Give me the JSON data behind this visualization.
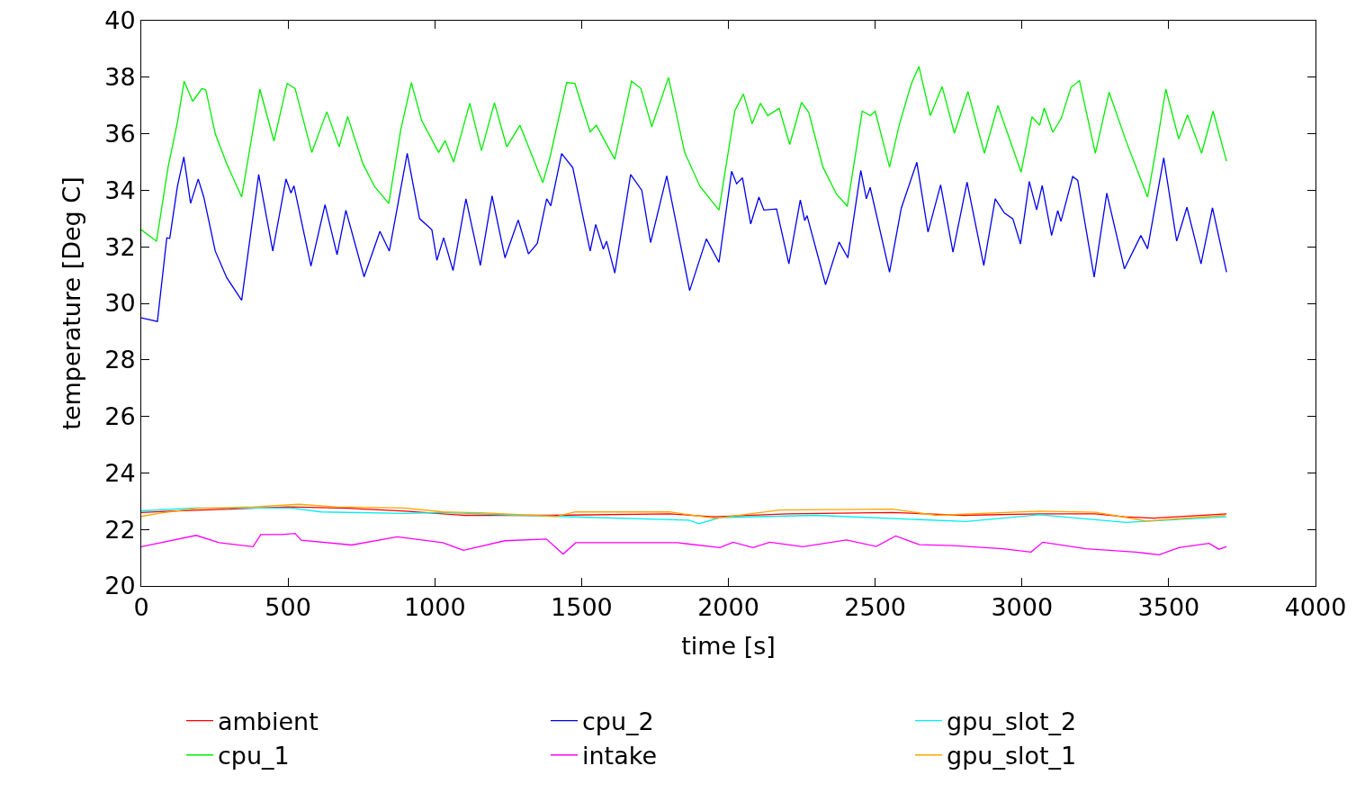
{
  "chart_data": {
    "type": "line",
    "xlabel": "time [s]",
    "ylabel": "temperature [Deg C]",
    "xlim": [
      0,
      4000
    ],
    "xticks": [
      0,
      500,
      1000,
      1500,
      2000,
      2500,
      3000,
      3500,
      4000
    ],
    "ylim": [
      20,
      40
    ],
    "yticks": [
      20,
      22,
      24,
      26,
      28,
      30,
      32,
      34,
      36,
      38,
      40
    ],
    "grid": false,
    "legend": "bottom",
    "marker": "none",
    "line_style": "solid",
    "series": [
      {
        "name": "ambient",
        "color": "#ff0000",
        "x": [
          0,
          100,
          250,
          500,
          700,
          900,
          1100,
          1400,
          1800,
          1950,
          2200,
          2560,
          2800,
          3060,
          3250,
          3350,
          3450,
          3697
        ],
        "values": [
          22.6,
          22.65,
          22.7,
          22.8,
          22.75,
          22.65,
          22.5,
          22.5,
          22.55,
          22.45,
          22.55,
          22.6,
          22.5,
          22.55,
          22.55,
          22.45,
          22.4,
          22.55
        ]
      },
      {
        "name": "cpu_1",
        "color": "#00ee00",
        "x": [
          0,
          52,
          91,
          123,
          146,
          175,
          207,
          220,
          252,
          291,
          342,
          404,
          452,
          497,
          524,
          581,
          632,
          674,
          703,
          755,
          794,
          843,
          884,
          920,
          955,
          1013,
          1035,
          1064,
          1119,
          1159,
          1203,
          1245,
          1290,
          1368,
          1393,
          1449,
          1477,
          1529,
          1550,
          1613,
          1670,
          1702,
          1739,
          1796,
          1851,
          1903,
          1968,
          2022,
          2051,
          2081,
          2109,
          2134,
          2173,
          2209,
          2249,
          2274,
          2322,
          2368,
          2405,
          2456,
          2484,
          2500,
          2549,
          2583,
          2623,
          2649,
          2688,
          2728,
          2770,
          2816,
          2872,
          2918,
          2997,
          3034,
          3060,
          3076,
          3105,
          3134,
          3167,
          3196,
          3250,
          3297,
          3354,
          3428,
          3456,
          3490,
          3534,
          3564,
          3612,
          3651,
          3697
        ],
        "values": [
          32.6,
          32.2,
          34.8,
          36.4,
          37.86,
          37.15,
          37.6,
          37.55,
          36.0,
          34.94,
          33.76,
          37.58,
          35.74,
          37.78,
          37.6,
          35.34,
          36.78,
          35.54,
          36.61,
          34.94,
          34.14,
          33.53,
          36.14,
          37.81,
          36.47,
          35.34,
          35.76,
          35.0,
          37.08,
          35.4,
          37.1,
          35.54,
          36.3,
          34.27,
          35.2,
          37.81,
          37.78,
          36.07,
          36.3,
          35.1,
          37.86,
          37.6,
          36.25,
          37.99,
          35.34,
          34.14,
          33.3,
          36.82,
          37.41,
          36.35,
          37.08,
          36.64,
          36.9,
          35.62,
          37.11,
          36.75,
          34.82,
          33.87,
          33.43,
          36.8,
          36.64,
          36.8,
          34.82,
          36.35,
          37.76,
          38.38,
          36.64,
          37.67,
          36.02,
          37.49,
          35.31,
          37.0,
          34.64,
          36.6,
          36.3,
          36.91,
          36.05,
          36.55,
          37.64,
          37.88,
          35.31,
          37.47,
          35.76,
          33.76,
          35.4,
          37.58,
          35.82,
          36.67,
          35.31,
          36.8,
          35.03
        ]
      },
      {
        "name": "cpu_2",
        "color": "#0000ee",
        "x": [
          0,
          55,
          87,
          97,
          123,
          145,
          168,
          194,
          213,
          252,
          291,
          342,
          400,
          448,
          493,
          510,
          520,
          578,
          626,
          667,
          697,
          759,
          813,
          845,
          906,
          948,
          990,
          1007,
          1030,
          1062,
          1106,
          1155,
          1195,
          1239,
          1284,
          1319,
          1349,
          1381,
          1395,
          1432,
          1470,
          1529,
          1548,
          1574,
          1585,
          1613,
          1667,
          1705,
          1735,
          1790,
          1868,
          1925,
          1968,
          2011,
          2028,
          2048,
          2076,
          2104,
          2121,
          2164,
          2206,
          2245,
          2260,
          2268,
          2331,
          2377,
          2407,
          2451,
          2470,
          2483,
          2549,
          2589,
          2642,
          2680,
          2723,
          2765,
          2813,
          2870,
          2909,
          2940,
          2969,
          2995,
          3025,
          3050,
          3069,
          3101,
          3122,
          3133,
          3173,
          3190,
          3246,
          3289,
          3349,
          3405,
          3428,
          3483,
          3527,
          3562,
          3610,
          3649,
          3697
        ],
        "values": [
          29.49,
          29.36,
          32.32,
          32.3,
          34.13,
          35.18,
          33.54,
          34.4,
          33.76,
          31.85,
          30.91,
          30.11,
          34.56,
          31.85,
          34.4,
          33.9,
          34.16,
          31.32,
          33.49,
          31.72,
          33.29,
          30.94,
          32.55,
          31.85,
          35.31,
          33.0,
          32.6,
          31.52,
          32.32,
          31.16,
          33.7,
          31.34,
          33.8,
          31.61,
          32.95,
          31.75,
          32.12,
          33.7,
          33.45,
          35.3,
          34.8,
          31.85,
          32.79,
          31.92,
          32.2,
          31.07,
          34.56,
          34.0,
          32.15,
          34.51,
          30.45,
          32.28,
          31.45,
          34.67,
          34.23,
          34.44,
          32.81,
          33.76,
          33.3,
          33.34,
          31.4,
          33.66,
          32.93,
          33.1,
          30.66,
          32.17,
          31.61,
          34.7,
          33.7,
          34.1,
          31.1,
          33.37,
          34.99,
          32.52,
          34.19,
          31.81,
          34.29,
          31.34,
          33.7,
          33.2,
          32.99,
          32.1,
          34.31,
          33.31,
          34.17,
          32.4,
          33.28,
          32.9,
          34.49,
          34.35,
          30.93,
          33.9,
          31.22,
          32.4,
          31.93,
          35.15,
          32.2,
          33.4,
          31.4,
          33.38,
          31.1
        ]
      },
      {
        "name": "intake",
        "color": "#ff00ff",
        "x": [
          0,
          187,
          265,
          381,
          407,
          478,
          524,
          545,
          717,
          872,
          1027,
          1098,
          1238,
          1380,
          1437,
          1480,
          1672,
          1826,
          1971,
          2016,
          2084,
          2141,
          2254,
          2402,
          2504,
          2570,
          2651,
          2765,
          2935,
          3031,
          3071,
          3218,
          3388,
          3467,
          3535,
          3637,
          3671,
          3697
        ],
        "values": [
          21.39,
          21.79,
          21.53,
          21.39,
          21.82,
          21.82,
          21.86,
          21.62,
          21.45,
          21.74,
          21.53,
          21.26,
          21.6,
          21.66,
          21.13,
          21.53,
          21.53,
          21.53,
          21.36,
          21.55,
          21.36,
          21.55,
          21.39,
          21.63,
          21.4,
          21.77,
          21.46,
          21.43,
          21.32,
          21.2,
          21.55,
          21.32,
          21.2,
          21.1,
          21.36,
          21.51,
          21.3,
          21.39
        ]
      },
      {
        "name": "gpu_slot_2",
        "color": "#00eeee",
        "x": [
          0,
          187,
          510,
          613,
          898,
          1027,
          1285,
          1865,
          1900,
          1971,
          2300,
          2810,
          3060,
          3354,
          3697
        ],
        "values": [
          22.66,
          22.76,
          22.76,
          22.62,
          22.57,
          22.6,
          22.5,
          22.33,
          22.2,
          22.42,
          22.5,
          22.28,
          22.52,
          22.25,
          22.45
        ]
      },
      {
        "name": "gpu_slot_1",
        "color": "#ffa500",
        "x": [
          0,
          58,
          187,
          381,
          536,
          665,
          898,
          1027,
          1156,
          1414,
          1478,
          1800,
          1955,
          2175,
          2560,
          2708,
          3059,
          3252,
          3422,
          3694
        ],
        "values": [
          22.46,
          22.57,
          22.74,
          22.8,
          22.89,
          22.8,
          22.76,
          22.62,
          22.59,
          22.46,
          22.62,
          22.62,
          22.39,
          22.69,
          22.72,
          22.5,
          22.65,
          22.61,
          22.3,
          22.5
        ]
      }
    ]
  }
}
